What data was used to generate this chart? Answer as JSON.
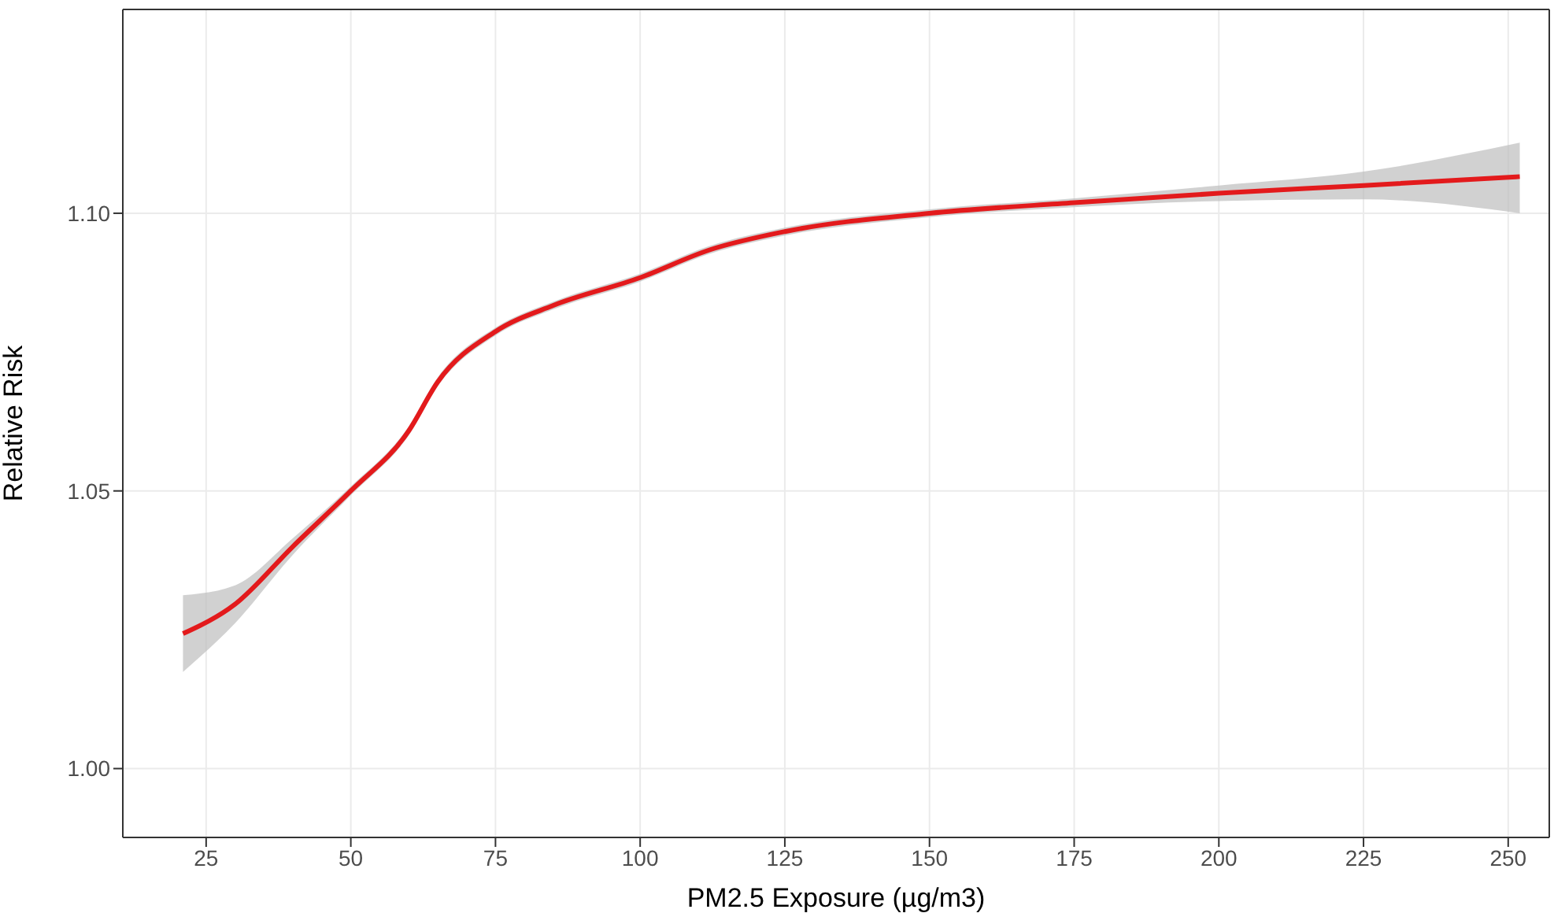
{
  "chart_data": {
    "type": "line",
    "xlabel": "PM2.5 Exposure (µg/m3)",
    "ylabel": "Relative Risk",
    "x": [
      21,
      30,
      40,
      50,
      60,
      65,
      75,
      85,
      100,
      112,
      125,
      150,
      175,
      200,
      225,
      252
    ],
    "series": [
      {
        "color": "#e31a1c",
        "values": [
          1.0243,
          1.0296,
          1.04,
          1.05,
          1.0608,
          1.0696,
          1.0787,
          1.0834,
          1.0884,
          1.0934,
          1.0967,
          1.1,
          1.1019,
          1.1036,
          1.105,
          1.1066
        ],
        "lower": [
          1.0174,
          1.0262,
          1.0385,
          1.0492,
          1.06,
          1.0688,
          1.078,
          1.0827,
          1.0877,
          1.0927,
          1.096,
          1.0993,
          1.1011,
          1.1022,
          1.1025,
          1.1
        ],
        "upper": [
          1.0312,
          1.033,
          1.0415,
          1.0508,
          1.0616,
          1.0704,
          1.0794,
          1.0841,
          1.0891,
          1.0941,
          1.0974,
          1.1007,
          1.1027,
          1.105,
          1.1075,
          1.1127
        ]
      }
    ],
    "xlim": [
      10.6,
      257.1
    ],
    "xticks": [
      25,
      50,
      75,
      100,
      125,
      150,
      175,
      200,
      225,
      250
    ],
    "ylim": [
      0.9876,
      1.1367
    ],
    "yticks": [
      {
        "value": 1,
        "label": "1.00"
      },
      {
        "value": 1.05,
        "label": "1.05"
      },
      {
        "value": 1.1,
        "label": "1.10"
      }
    ],
    "grid": true,
    "legend": false,
    "marker": "none",
    "line_style": "solid"
  }
}
